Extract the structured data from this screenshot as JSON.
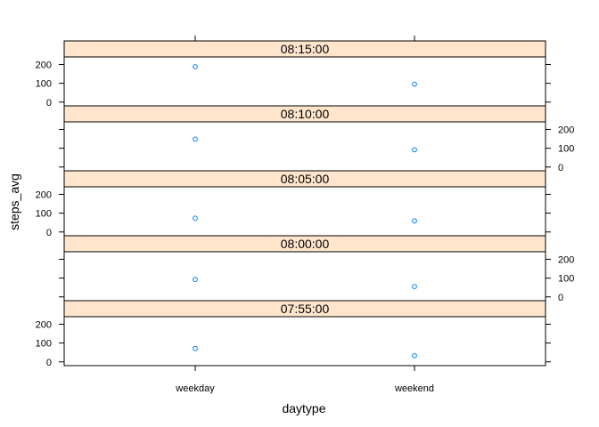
{
  "chart_data": {
    "type": "scatter",
    "layout": "lattice-panels-stacked",
    "xlabel": "daytype",
    "ylabel": "steps_avg",
    "categories": [
      "weekday",
      "weekend"
    ],
    "ylim": [
      -20,
      240
    ],
    "yticks": [
      0,
      100,
      200
    ],
    "strip_color": "#ffe5cc",
    "point_color": "#0080ff",
    "grid": false,
    "panels": [
      {
        "label": "08:15:00",
        "values": [
          188,
          95
        ],
        "ytick_side": "left"
      },
      {
        "label": "08:10:00",
        "values": [
          148,
          92
        ],
        "ytick_side": "right"
      },
      {
        "label": "08:05:00",
        "values": [
          73,
          59
        ],
        "ytick_side": "left"
      },
      {
        "label": "08:00:00",
        "values": [
          93,
          55
        ],
        "ytick_side": "right"
      },
      {
        "label": "07:55:00",
        "values": [
          71,
          33
        ],
        "ytick_side": "left"
      }
    ]
  }
}
